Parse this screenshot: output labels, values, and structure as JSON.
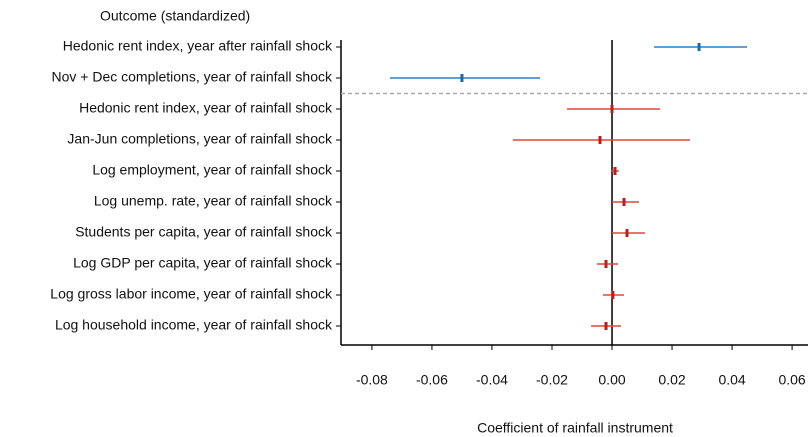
{
  "chart_data": {
    "type": "coefplot",
    "y_label": "Outcome (standardized)",
    "x_label": "Coefficient of rainfall instrument",
    "categories": [
      "Hedonic rent index, year after rainfall shock",
      "Nov + Dec completions, year of rainfall shock",
      "Hedonic rent index, year of rainfall shock",
      "Jan-Jun completions, year of rainfall shock",
      "Log employment, year of rainfall shock",
      "Log unemp. rate, year of rainfall shock",
      "Students per capita, year of rainfall shock",
      "Log GDP per capita, year of rainfall shock",
      "Log gross labor income, year of rainfall shock",
      "Log household income, year of rainfall shock"
    ],
    "values": [
      0.029,
      -0.05,
      0.0,
      -0.004,
      0.001,
      0.004,
      0.005,
      -0.002,
      0.0003,
      -0.002
    ],
    "ci_low": [
      0.014,
      -0.074,
      -0.015,
      -0.033,
      -0.0003,
      0.0,
      0.0,
      -0.005,
      -0.003,
      -0.007
    ],
    "ci_high": [
      0.045,
      -0.024,
      0.016,
      0.026,
      0.0023,
      0.009,
      0.011,
      0.002,
      0.004,
      0.003
    ],
    "colors": [
      "#2f7fbf",
      "#2f7fbf",
      "#e0473a",
      "#e0473a",
      "#e0473a",
      "#e0473a",
      "#e0473a",
      "#e0473a",
      "#e0473a",
      "#e0473a"
    ],
    "point_colors": [
      "#1f6aa5",
      "#1f6aa5",
      "#b8201a",
      "#b8201a",
      "#b8201a",
      "#b8201a",
      "#b8201a",
      "#b8201a",
      "#b8201a",
      "#b8201a"
    ],
    "separator_after": 2,
    "xlim": [
      -0.0903,
      0.0653
    ],
    "xticks": [
      -0.08,
      -0.06,
      -0.04,
      -0.02,
      {
        "value": 0,
        "label": "0.00"
      },
      0.02,
      0.04,
      0.06
    ]
  }
}
